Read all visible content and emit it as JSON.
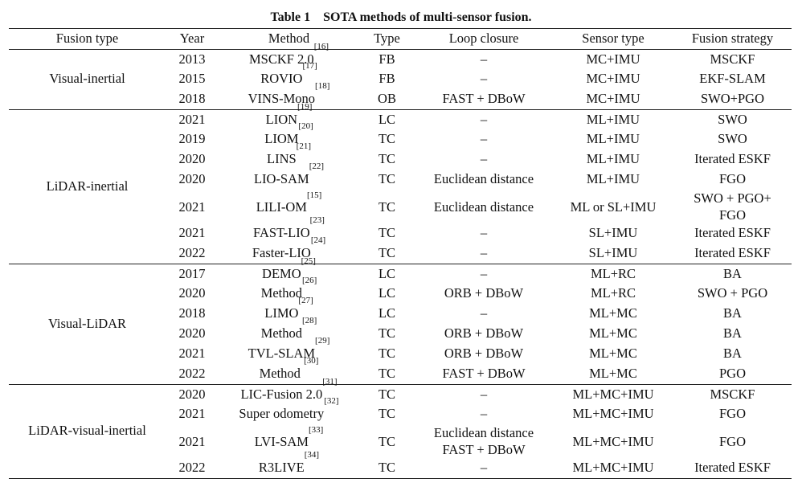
{
  "caption": {
    "label": "Table 1",
    "title": "SOTA methods of multi-sensor fusion."
  },
  "headers": [
    "Fusion type",
    "Year",
    "Method",
    "Type",
    "Loop closure",
    "Sensor type",
    "Fusion strategy"
  ],
  "groups": [
    {
      "fusion_type": "Visual-inertial",
      "rows": [
        {
          "year": "2013",
          "method": "MSCKF 2.0",
          "ref": "[16]",
          "type": "FB",
          "loop": [
            "–"
          ],
          "sensor": [
            "MC+IMU"
          ],
          "strategy": [
            "MSCKF"
          ]
        },
        {
          "year": "2015",
          "method": "ROVIO",
          "ref": "[17]",
          "type": "FB",
          "loop": [
            "–"
          ],
          "sensor": [
            "MC+IMU"
          ],
          "strategy": [
            "EKF-SLAM"
          ]
        },
        {
          "year": "2018",
          "method": "VINS-Mono",
          "ref": "[18]",
          "type": "OB",
          "loop": [
            "FAST + DBoW"
          ],
          "sensor": [
            "MC+IMU"
          ],
          "strategy": [
            "SWO+PGO"
          ]
        }
      ]
    },
    {
      "fusion_type": "LiDAR-inertial",
      "rows": [
        {
          "year": "2021",
          "method": "LION",
          "ref": "[19]",
          "type": "LC",
          "loop": [
            "–"
          ],
          "sensor": [
            "ML+IMU"
          ],
          "strategy": [
            "SWO"
          ]
        },
        {
          "year": "2019",
          "method": "LIOM",
          "ref": "[20]",
          "type": "TC",
          "loop": [
            "–"
          ],
          "sensor": [
            "ML+IMU"
          ],
          "strategy": [
            "SWO"
          ]
        },
        {
          "year": "2020",
          "method": "LINS",
          "ref": "[21]",
          "type": "TC",
          "loop": [
            "–"
          ],
          "sensor": [
            "ML+IMU"
          ],
          "strategy": [
            "Iterated ESKF"
          ]
        },
        {
          "year": "2020",
          "method": "LIO-SAM",
          "ref": "[22]",
          "type": "TC",
          "loop": [
            "Euclidean distance"
          ],
          "sensor": [
            "ML+IMU"
          ],
          "strategy": [
            "FGO"
          ]
        },
        {
          "year": "2021",
          "method": "LILI-OM",
          "ref": "[15]",
          "type": "TC",
          "loop": [
            "Euclidean distance"
          ],
          "sensor": [
            "ML or SL+IMU"
          ],
          "strategy": [
            "SWO + PGO+",
            "FGO"
          ]
        },
        {
          "year": "2021",
          "method": "FAST-LIO",
          "ref": "[23]",
          "type": "TC",
          "loop": [
            "–"
          ],
          "sensor": [
            "SL+IMU"
          ],
          "strategy": [
            "Iterated ESKF"
          ]
        },
        {
          "year": "2022",
          "method": "Faster-LIO",
          "ref": "[24]",
          "type": "TC",
          "loop": [
            "–"
          ],
          "sensor": [
            "SL+IMU"
          ],
          "strategy": [
            "Iterated ESKF"
          ]
        }
      ]
    },
    {
      "fusion_type": "Visual-LiDAR",
      "rows": [
        {
          "year": "2017",
          "method": "DEMO",
          "ref": "[25]",
          "type": "LC",
          "loop": [
            "–"
          ],
          "sensor": [
            "ML+RC"
          ],
          "strategy": [
            "BA"
          ]
        },
        {
          "year": "2020",
          "method": "Method",
          "ref": "[26]",
          "type": "LC",
          "loop": [
            "ORB + DBoW"
          ],
          "sensor": [
            "ML+RC"
          ],
          "strategy": [
            "SWO + PGO"
          ]
        },
        {
          "year": "2018",
          "method": "LIMO",
          "ref": "[27]",
          "type": "LC",
          "loop": [
            "–"
          ],
          "sensor": [
            "ML+MC"
          ],
          "strategy": [
            "BA"
          ]
        },
        {
          "year": "2020",
          "method": "Method",
          "ref": "[28]",
          "type": "TC",
          "loop": [
            "ORB + DBoW"
          ],
          "sensor": [
            "ML+MC"
          ],
          "strategy": [
            "BA"
          ]
        },
        {
          "year": "2021",
          "method": "TVL-SLAM",
          "ref": "[29]",
          "type": "TC",
          "loop": [
            "ORB + DBoW"
          ],
          "sensor": [
            "ML+MC"
          ],
          "strategy": [
            "BA"
          ]
        },
        {
          "year": "2022",
          "method": "Method ",
          "ref": "[30]",
          "type": "TC",
          "loop": [
            "FAST + DBoW"
          ],
          "sensor": [
            "ML+MC"
          ],
          "strategy": [
            "PGO"
          ]
        }
      ]
    },
    {
      "fusion_type": "LiDAR-visual-inertial",
      "rows": [
        {
          "year": "2020",
          "method": "LIC-Fusion 2.0",
          "ref": "[31]",
          "type": "TC",
          "loop": [
            "–"
          ],
          "sensor": [
            "ML+MC+IMU"
          ],
          "strategy": [
            "MSCKF"
          ]
        },
        {
          "year": "2021",
          "method": "Super odometry",
          "ref": "[32]",
          "type": "TC",
          "loop": [
            "–"
          ],
          "sensor": [
            "ML+MC+IMU"
          ],
          "strategy": [
            "FGO"
          ]
        },
        {
          "year": "2021",
          "method": "LVI-SAM",
          "ref": "[33]",
          "type": "TC",
          "loop": [
            "Euclidean distance",
            "FAST + DBoW"
          ],
          "sensor": [
            "ML+MC+IMU"
          ],
          "strategy": [
            "FGO"
          ]
        },
        {
          "year": "2022",
          "method": "R3LIVE",
          "ref": "[34]",
          "type": "TC",
          "loop": [
            "–"
          ],
          "sensor": [
            "ML+MC+IMU"
          ],
          "strategy": [
            "Iterated ESKF"
          ]
        }
      ]
    }
  ]
}
